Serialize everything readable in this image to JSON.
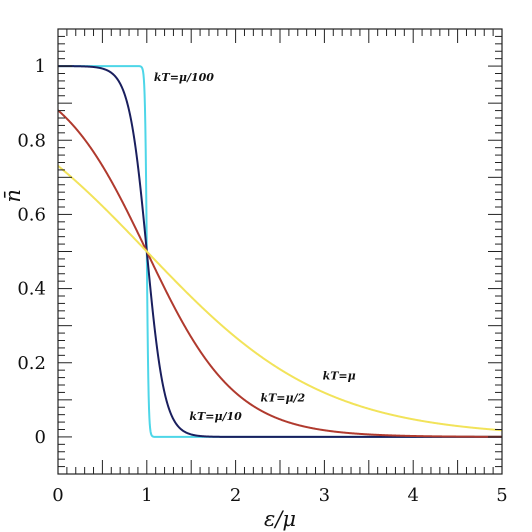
{
  "chart_data": {
    "type": "line",
    "title": "",
    "xlabel": "ε/μ",
    "ylabel": "n̄",
    "xlim": [
      0,
      5
    ],
    "ylim": [
      -0.1,
      1.1
    ],
    "x_ticks": [
      "0",
      "1",
      "2",
      "3",
      "4",
      "5"
    ],
    "y_ticks": [
      "0",
      "0.2",
      "0.4",
      "0.6",
      "0.8",
      "1"
    ],
    "grid": false,
    "function": "n = 1 / (exp((x - 1) / t) + 1)",
    "series": [
      {
        "name": "kT=μ/100",
        "t": 0.01,
        "color": "#4dd6e8",
        "x": [
          0,
          0.5,
          0.9,
          0.95,
          0.98,
          0.99,
          1.0,
          1.01,
          1.02,
          1.05,
          1.1,
          1.5,
          2,
          3,
          4,
          5
        ],
        "y": [
          1,
          1,
          1,
          0.993,
          0.881,
          0.731,
          0.5,
          0.269,
          0.119,
          0.007,
          0,
          0,
          0,
          0,
          0,
          0
        ]
      },
      {
        "name": "kT=μ/10",
        "t": 0.1,
        "color": "#1a1f5e",
        "x": [
          0,
          0.5,
          0.7,
          0.8,
          0.9,
          1.0,
          1.1,
          1.2,
          1.3,
          1.5,
          2,
          3,
          4,
          5
        ],
        "y": [
          1,
          0.993,
          0.953,
          0.881,
          0.731,
          0.5,
          0.269,
          0.119,
          0.047,
          0.007,
          0,
          0,
          0,
          0
        ]
      },
      {
        "name": "kT=μ/2",
        "t": 0.5,
        "color": "#b03a2e",
        "x": [
          0,
          0.5,
          1,
          1.5,
          2,
          2.5,
          3,
          3.5,
          4,
          4.5,
          5
        ],
        "y": [
          0.881,
          0.731,
          0.5,
          0.269,
          0.119,
          0.047,
          0.018,
          0.007,
          0.002,
          0.001,
          0
        ]
      },
      {
        "name": "kT=μ",
        "t": 1.0,
        "color": "#f2e35a",
        "x": [
          0,
          0.5,
          1,
          1.5,
          2,
          2.5,
          3,
          3.5,
          4,
          4.5,
          5
        ],
        "y": [
          0.731,
          0.622,
          0.5,
          0.378,
          0.269,
          0.182,
          0.119,
          0.076,
          0.047,
          0.029,
          0.018
        ]
      }
    ],
    "annotations": [
      {
        "text": "kT=μ/100",
        "x": 1.08,
        "y": 0.96
      },
      {
        "text": "kT=μ/10",
        "x": 1.48,
        "y": 0.045
      },
      {
        "text": "kT=μ/2",
        "x": 2.28,
        "y": 0.095
      },
      {
        "text": "kT=μ",
        "x": 2.98,
        "y": 0.155
      }
    ]
  }
}
